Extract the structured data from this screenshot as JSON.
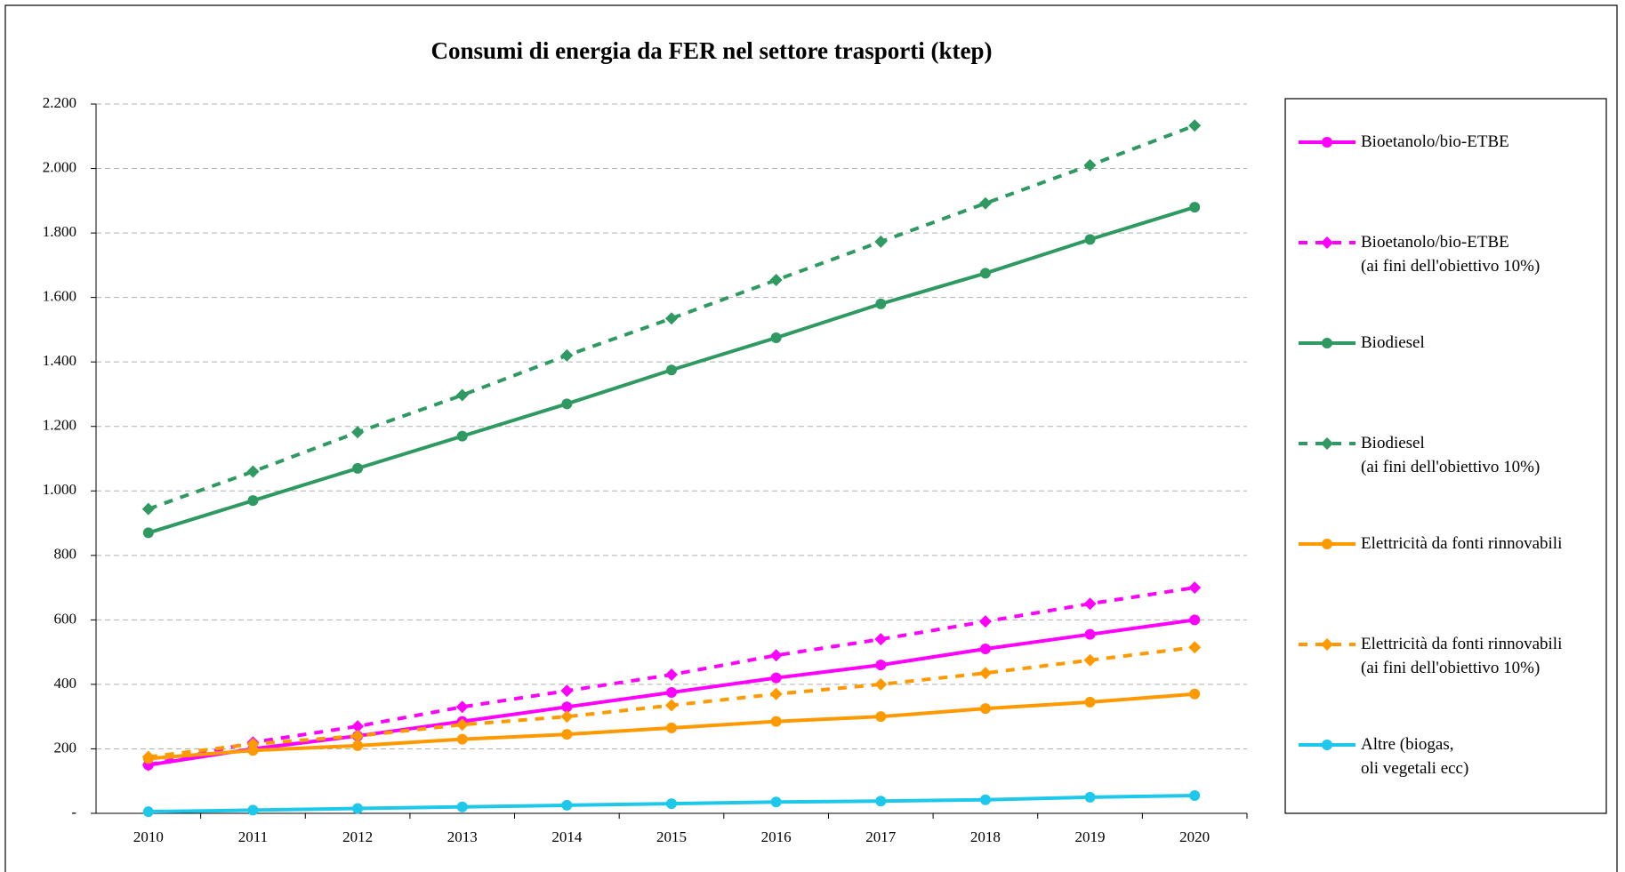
{
  "chart_data": {
    "type": "line",
    "title": "Consumi di energia da FER nel settore trasporti (ktep)",
    "categories": [
      "2010",
      "2011",
      "2012",
      "2013",
      "2014",
      "2015",
      "2016",
      "2017",
      "2018",
      "2019",
      "2020"
    ],
    "ylim": [
      0,
      2200
    ],
    "yticks": [
      {
        "value": 0,
        "label": "-"
      },
      200,
      400,
      600,
      800,
      {
        "value": 1000,
        "label": "1.000"
      },
      {
        "value": 1200,
        "label": "1.200"
      },
      {
        "value": 1400,
        "label": "1.400"
      },
      {
        "value": 1600,
        "label": "1.600"
      },
      {
        "value": 1800,
        "label": "1.800"
      },
      {
        "value": 2000,
        "label": "2.000"
      },
      {
        "value": 2200,
        "label": "2.200"
      }
    ],
    "grid": true,
    "legend": "right",
    "series": [
      {
        "name": "Bioetanolo/bio-ETBE",
        "color": "#ff00ff",
        "dashed": false,
        "marker": "circle",
        "values": [
          150,
          200,
          240,
          285,
          330,
          375,
          420,
          460,
          510,
          555,
          600
        ]
      },
      {
        "name": "Bioetanolo/bio-ETBE\n(ai fini dell'obiettivo 10%)",
        "color": "#ff00ff",
        "dashed": true,
        "marker": "diamond",
        "values": [
          150,
          220,
          270,
          330,
          380,
          430,
          490,
          540,
          595,
          650,
          700
        ]
      },
      {
        "name": "Biodiesel",
        "color": "#2e9960",
        "dashed": false,
        "marker": "circle",
        "values": [
          870,
          970,
          1070,
          1170,
          1270,
          1375,
          1475,
          1580,
          1675,
          1780,
          1880
        ]
      },
      {
        "name": "Biodiesel\n(ai fini dell'obiettivo 10%)",
        "color": "#2e9960",
        "dashed": true,
        "marker": "diamond",
        "values": [
          944,
          1060,
          1182,
          1297,
          1420,
          1535,
          1654,
          1773,
          1892,
          2010,
          2133
        ]
      },
      {
        "name": "Elettricità da fonti rinnovabili",
        "color": "#ff9900",
        "dashed": false,
        "marker": "circle",
        "values": [
          170,
          195,
          210,
          230,
          245,
          265,
          285,
          300,
          325,
          345,
          370
        ]
      },
      {
        "name": "Elettricità da fonti rinnovabili\n(ai fini dell'obiettivo 10%)",
        "color": "#ff9900",
        "dashed": true,
        "marker": "diamond",
        "values": [
          175,
          215,
          240,
          275,
          300,
          335,
          370,
          400,
          435,
          475,
          515
        ]
      },
      {
        "name": "Altre (biogas,\noli vegetali ecc)",
        "color": "#1ec8ea",
        "dashed": false,
        "marker": "circle",
        "values": [
          5,
          10,
          15,
          20,
          25,
          30,
          35,
          38,
          42,
          50,
          55
        ]
      }
    ]
  }
}
